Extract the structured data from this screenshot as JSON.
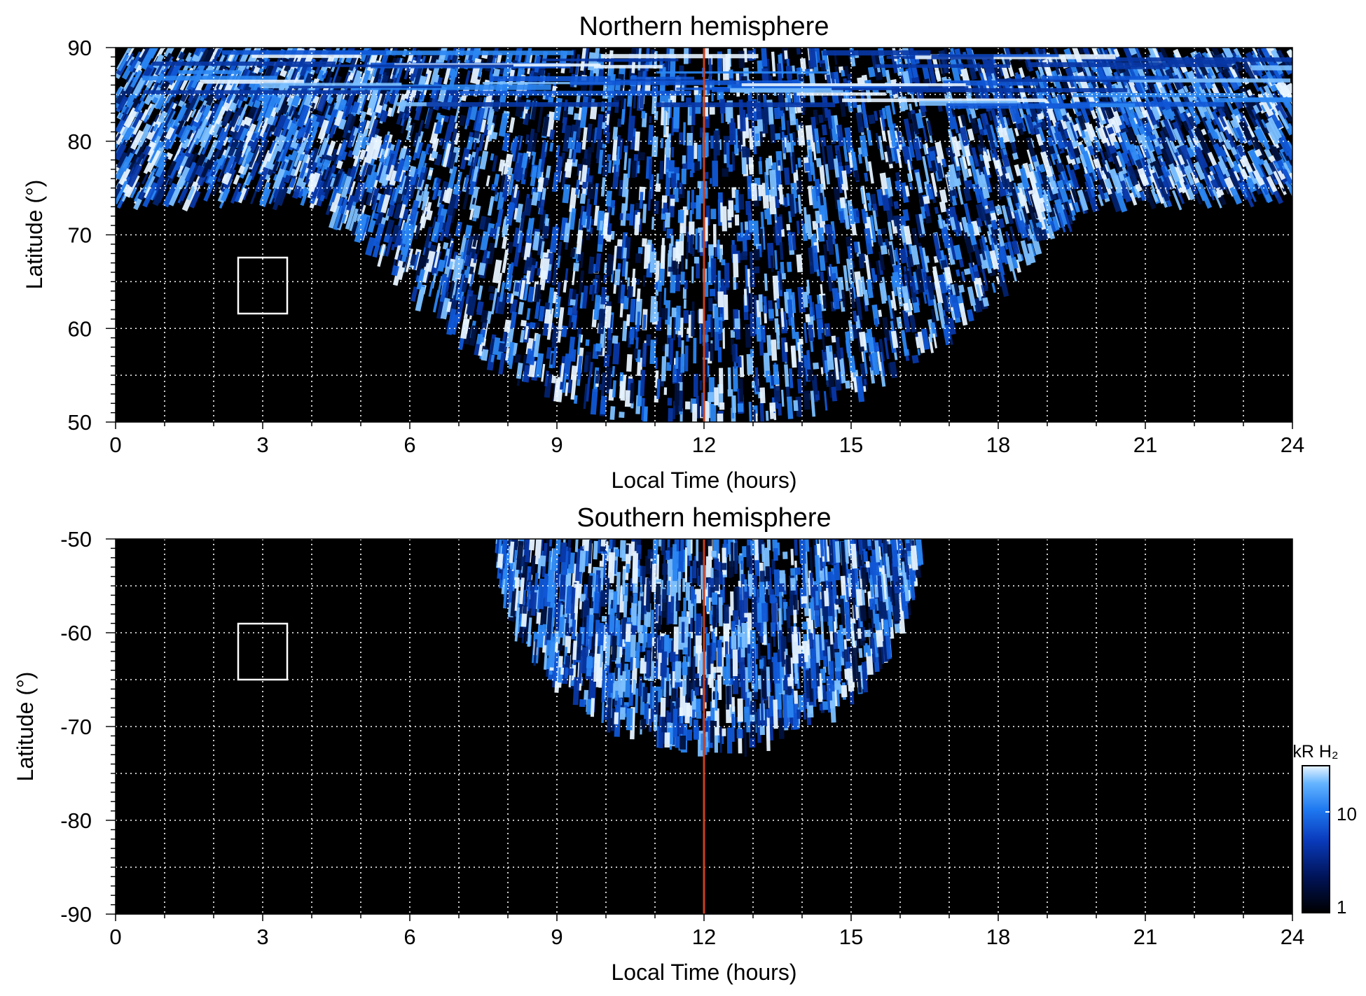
{
  "chart_data": [
    {
      "type": "heatmap",
      "title": "Northern hemisphere",
      "xlabel": "Local Time (hours)",
      "ylabel": "Latitude (°)",
      "xlim": [
        0,
        24
      ],
      "ylim": [
        50,
        90
      ],
      "xticks": [
        "0",
        "3",
        "6",
        "9",
        "12",
        "15",
        "18",
        "21",
        "24"
      ],
      "yticks": [
        "90",
        "80",
        "70",
        "60",
        "50"
      ],
      "grid": true,
      "reference_line": {
        "x": 12,
        "color": "#c8401e"
      },
      "box": {
        "x": [
          2.5,
          3.5
        ],
        "y": [
          61.5,
          67.5
        ]
      },
      "coverage": "auroral emission coverage from ~73° (night) down to 50° around noon, curving arcs spanning all local times poleward of ~74°"
    },
    {
      "type": "heatmap",
      "title": "Southern hemisphere",
      "xlabel": "Local Time (hours)",
      "ylabel": "Latitude (°)",
      "xlim": [
        0,
        24
      ],
      "ylim": [
        -90,
        -50
      ],
      "xticks": [
        "0",
        "3",
        "6",
        "9",
        "12",
        "15",
        "18",
        "21",
        "24"
      ],
      "yticks": [
        "-50",
        "-60",
        "-70",
        "-80",
        "-90"
      ],
      "grid": true,
      "reference_line": {
        "x": 12,
        "color": "#c8401e"
      },
      "box": {
        "x": [
          2.5,
          3.5
        ],
        "y": [
          -65,
          -59
        ]
      },
      "coverage": "emission only near noon, from about 8 to 16.5 h local time, latitudes -50° to about -72°"
    }
  ],
  "colorbar": {
    "label": "kR H₂",
    "scale": "log",
    "range": [
      1,
      20
    ],
    "ticks": [
      "1",
      "10"
    ],
    "colors": [
      "#000000",
      "#00145a",
      "#0a3cbe",
      "#1e78f0",
      "#64b4ff",
      "#e8f4ff"
    ]
  },
  "colors": {
    "background": "#000000",
    "noon_line": "#c8401e",
    "grid": "#ffffff"
  }
}
